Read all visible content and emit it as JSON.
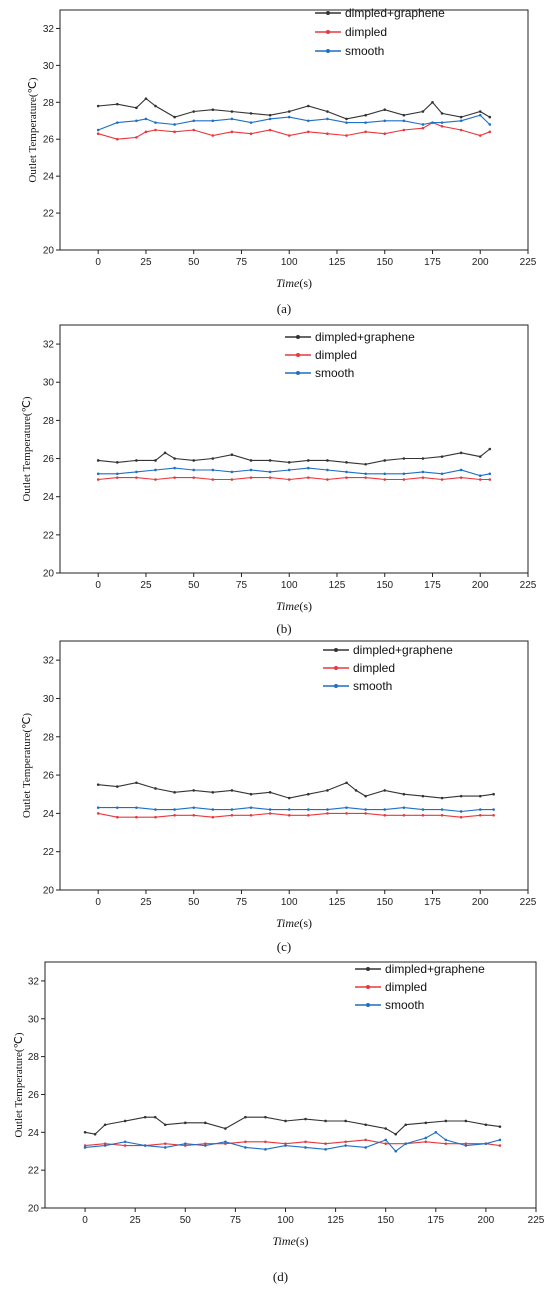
{
  "chart_data": [
    {
      "type": "line",
      "panel_label": "(a)",
      "xlabel_italic": "Time",
      "xlabel_unit": "(s)",
      "ylabel": "Outlet Temperature(℃)",
      "xlim": [
        -20,
        225
      ],
      "ylim": [
        20,
        33
      ],
      "xticks": [
        0,
        25,
        50,
        75,
        100,
        125,
        150,
        175,
        200,
        225
      ],
      "yticks": [
        20,
        22,
        24,
        26,
        28,
        30,
        32
      ],
      "legend_position": "top-right",
      "series": [
        {
          "name": "dimpled+graphene",
          "color": "#333333",
          "x": [
            0,
            10,
            20,
            25,
            30,
            40,
            50,
            60,
            70,
            80,
            90,
            100,
            110,
            120,
            130,
            140,
            150,
            160,
            170,
            175,
            180,
            190,
            200,
            205
          ],
          "y": [
            27.8,
            27.9,
            27.7,
            28.2,
            27.8,
            27.2,
            27.5,
            27.6,
            27.5,
            27.4,
            27.3,
            27.5,
            27.8,
            27.5,
            27.1,
            27.3,
            27.6,
            27.3,
            27.5,
            28.0,
            27.4,
            27.2,
            27.5,
            27.2
          ]
        },
        {
          "name": "dimpled",
          "color": "#e8383d",
          "x": [
            0,
            10,
            20,
            25,
            30,
            40,
            50,
            60,
            70,
            80,
            90,
            100,
            110,
            120,
            130,
            140,
            150,
            160,
            170,
            175,
            180,
            190,
            200,
            205
          ],
          "y": [
            26.3,
            26.0,
            26.1,
            26.4,
            26.5,
            26.4,
            26.5,
            26.2,
            26.4,
            26.3,
            26.5,
            26.2,
            26.4,
            26.3,
            26.2,
            26.4,
            26.3,
            26.5,
            26.6,
            26.9,
            26.7,
            26.5,
            26.2,
            26.4
          ]
        },
        {
          "name": "smooth",
          "color": "#1f6fc4",
          "x": [
            0,
            10,
            20,
            25,
            30,
            40,
            50,
            60,
            70,
            80,
            90,
            100,
            110,
            120,
            130,
            140,
            150,
            160,
            170,
            175,
            180,
            190,
            200,
            205
          ],
          "y": [
            26.5,
            26.9,
            27.0,
            27.1,
            26.9,
            26.8,
            27.0,
            27.0,
            27.1,
            26.9,
            27.1,
            27.2,
            27.0,
            27.1,
            26.9,
            26.9,
            27.0,
            27.0,
            26.8,
            26.9,
            26.9,
            27.0,
            27.3,
            26.8
          ]
        }
      ]
    },
    {
      "type": "line",
      "panel_label": "(b)",
      "xlabel_italic": "Time",
      "xlabel_unit": "(s)",
      "ylabel": "Outlet Temperature(℃)",
      "xlim": [
        -20,
        225
      ],
      "ylim": [
        20,
        33
      ],
      "xticks": [
        0,
        25,
        50,
        75,
        100,
        125,
        150,
        175,
        200,
        225
      ],
      "yticks": [
        20,
        22,
        24,
        26,
        28,
        30,
        32
      ],
      "legend_position": "top-right",
      "series": [
        {
          "name": "dimpled+graphene",
          "color": "#333333",
          "x": [
            0,
            10,
            20,
            30,
            35,
            40,
            50,
            60,
            70,
            80,
            90,
            100,
            110,
            120,
            130,
            140,
            150,
            160,
            170,
            180,
            190,
            200,
            205
          ],
          "y": [
            25.9,
            25.8,
            25.9,
            25.9,
            26.3,
            26.0,
            25.9,
            26.0,
            26.2,
            25.9,
            25.9,
            25.8,
            25.9,
            25.9,
            25.8,
            25.7,
            25.9,
            26.0,
            26.0,
            26.1,
            26.3,
            26.1,
            26.5
          ]
        },
        {
          "name": "dimpled",
          "color": "#e8383d",
          "x": [
            0,
            10,
            20,
            30,
            40,
            50,
            60,
            70,
            80,
            90,
            100,
            110,
            120,
            130,
            140,
            150,
            160,
            170,
            180,
            190,
            200,
            205
          ],
          "y": [
            24.9,
            25.0,
            25.0,
            24.9,
            25.0,
            25.0,
            24.9,
            24.9,
            25.0,
            25.0,
            24.9,
            25.0,
            24.9,
            25.0,
            25.0,
            24.9,
            24.9,
            25.0,
            24.9,
            25.0,
            24.9,
            24.9
          ]
        },
        {
          "name": "smooth",
          "color": "#1f6fc4",
          "x": [
            0,
            10,
            20,
            30,
            40,
            50,
            60,
            70,
            80,
            90,
            100,
            110,
            120,
            130,
            140,
            150,
            160,
            170,
            180,
            190,
            200,
            205
          ],
          "y": [
            25.2,
            25.2,
            25.3,
            25.4,
            25.5,
            25.4,
            25.4,
            25.3,
            25.4,
            25.3,
            25.4,
            25.5,
            25.4,
            25.3,
            25.2,
            25.2,
            25.2,
            25.3,
            25.2,
            25.4,
            25.1,
            25.2
          ]
        }
      ]
    },
    {
      "type": "line",
      "panel_label": "(c)",
      "xlabel_italic": "Time",
      "xlabel_unit": "(s)",
      "ylabel": "Outlet Temperature(℃)",
      "xlim": [
        -20,
        225
      ],
      "ylim": [
        20,
        33
      ],
      "xticks": [
        0,
        25,
        50,
        75,
        100,
        125,
        150,
        175,
        200,
        225
      ],
      "yticks": [
        20,
        22,
        24,
        26,
        28,
        30,
        32
      ],
      "legend_position": "top-right",
      "series": [
        {
          "name": "dimpled+graphene",
          "color": "#333333",
          "x": [
            0,
            10,
            20,
            30,
            40,
            50,
            60,
            70,
            80,
            90,
            100,
            110,
            120,
            130,
            135,
            140,
            150,
            160,
            170,
            180,
            190,
            200,
            207
          ],
          "y": [
            25.5,
            25.4,
            25.6,
            25.3,
            25.1,
            25.2,
            25.1,
            25.2,
            25.0,
            25.1,
            24.8,
            25.0,
            25.2,
            25.6,
            25.2,
            24.9,
            25.2,
            25.0,
            24.9,
            24.8,
            24.9,
            24.9,
            25.0
          ]
        },
        {
          "name": "dimpled",
          "color": "#e8383d",
          "x": [
            0,
            10,
            20,
            30,
            40,
            50,
            60,
            70,
            80,
            90,
            100,
            110,
            120,
            130,
            140,
            150,
            160,
            170,
            180,
            190,
            200,
            207
          ],
          "y": [
            24.0,
            23.8,
            23.8,
            23.8,
            23.9,
            23.9,
            23.8,
            23.9,
            23.9,
            24.0,
            23.9,
            23.9,
            24.0,
            24.0,
            24.0,
            23.9,
            23.9,
            23.9,
            23.9,
            23.8,
            23.9,
            23.9
          ]
        },
        {
          "name": "smooth",
          "color": "#1f6fc4",
          "x": [
            0,
            10,
            20,
            30,
            40,
            50,
            60,
            70,
            80,
            90,
            100,
            110,
            120,
            130,
            140,
            150,
            160,
            170,
            180,
            190,
            200,
            207
          ],
          "y": [
            24.3,
            24.3,
            24.3,
            24.2,
            24.2,
            24.3,
            24.2,
            24.2,
            24.3,
            24.2,
            24.2,
            24.2,
            24.2,
            24.3,
            24.2,
            24.2,
            24.3,
            24.2,
            24.2,
            24.1,
            24.2,
            24.2
          ]
        }
      ]
    },
    {
      "type": "line",
      "panel_label": "(d)",
      "xlabel_italic": "Time",
      "xlabel_unit": "(s)",
      "ylabel": "Outlet Temperature(℃)",
      "xlim": [
        -20,
        225
      ],
      "ylim": [
        20,
        33
      ],
      "xticks": [
        0,
        25,
        50,
        75,
        100,
        125,
        150,
        175,
        200,
        225
      ],
      "yticks": [
        20,
        22,
        24,
        26,
        28,
        30,
        32
      ],
      "legend_position": "top-right",
      "series": [
        {
          "name": "dimpled+graphene",
          "color": "#333333",
          "x": [
            0,
            5,
            10,
            20,
            30,
            35,
            40,
            50,
            60,
            70,
            80,
            90,
            100,
            110,
            120,
            130,
            140,
            150,
            155,
            160,
            170,
            180,
            190,
            200,
            207
          ],
          "y": [
            24.0,
            23.9,
            24.4,
            24.6,
            24.8,
            24.8,
            24.4,
            24.5,
            24.5,
            24.2,
            24.8,
            24.8,
            24.6,
            24.7,
            24.6,
            24.6,
            24.4,
            24.2,
            23.9,
            24.4,
            24.5,
            24.6,
            24.6,
            24.4,
            24.3
          ]
        },
        {
          "name": "dimpled",
          "color": "#e8383d",
          "x": [
            0,
            10,
            20,
            30,
            40,
            50,
            60,
            70,
            80,
            90,
            100,
            110,
            120,
            130,
            140,
            150,
            160,
            170,
            180,
            190,
            200,
            207
          ],
          "y": [
            23.3,
            23.4,
            23.3,
            23.3,
            23.4,
            23.3,
            23.4,
            23.4,
            23.5,
            23.5,
            23.4,
            23.5,
            23.4,
            23.5,
            23.6,
            23.4,
            23.4,
            23.5,
            23.4,
            23.4,
            23.4,
            23.3
          ]
        },
        {
          "name": "smooth",
          "color": "#1f6fc4",
          "x": [
            0,
            10,
            20,
            30,
            40,
            50,
            60,
            70,
            80,
            90,
            100,
            110,
            120,
            130,
            140,
            150,
            155,
            160,
            170,
            175,
            180,
            190,
            200,
            207
          ],
          "y": [
            23.2,
            23.3,
            23.5,
            23.3,
            23.2,
            23.4,
            23.3,
            23.5,
            23.2,
            23.1,
            23.3,
            23.2,
            23.1,
            23.3,
            23.2,
            23.6,
            23.0,
            23.4,
            23.7,
            24.0,
            23.6,
            23.3,
            23.4,
            23.6
          ]
        }
      ]
    }
  ]
}
